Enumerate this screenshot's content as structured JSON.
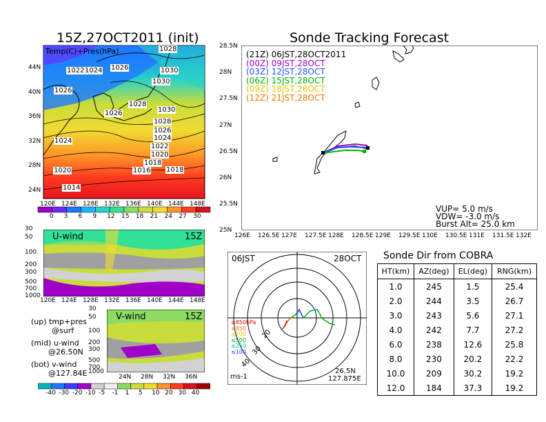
{
  "top_left": {
    "title": "15Z,27OCT2011 (init)",
    "label": "Temp(C)+Pres(hPa)",
    "lat_ticks": [
      "44N",
      "40N",
      "36N",
      "32N",
      "28N",
      "24N"
    ],
    "lon_ticks": [
      "120E",
      "124E",
      "128E",
      "132E",
      "136E",
      "140E",
      "144E",
      "148E"
    ],
    "isobars": [
      "1028",
      "1022",
      "1024",
      "1026",
      "1030",
      "1026",
      "1030",
      "1028",
      "1026",
      "1030",
      "1028",
      "1026",
      "1024",
      "1024",
      "1022",
      "1020",
      "1018",
      "1020",
      "1016",
      "1018",
      "1014",
      "1018"
    ],
    "colorbar": [
      "0",
      "3",
      "6",
      "9",
      "12",
      "15",
      "18",
      "21",
      "24",
      "27",
      "30"
    ],
    "colors": [
      "#a000c8",
      "#6e28ff",
      "#1e78ff",
      "#1eb4ff",
      "#28d2c8",
      "#32e196",
      "#8cdc64",
      "#c8dc3c",
      "#f0dc32",
      "#ff9628",
      "#ff3c1e",
      "#d2141e"
    ]
  },
  "uwind": {
    "title": "U-wind",
    "time": "15Z",
    "levels": [
      "30",
      "50",
      "100",
      "200",
      "300",
      "500",
      "700",
      "1000"
    ],
    "lon_ticks": [
      "120E",
      "124E",
      "128E",
      "132E",
      "136E",
      "140E",
      "144E",
      "148E"
    ]
  },
  "vwind": {
    "title": "V-wind",
    "time": "15Z",
    "levels": [
      "30",
      "50",
      "100",
      "200",
      "300",
      "500",
      "700",
      "1000"
    ],
    "lat_ticks": [
      "24N",
      "28N",
      "32N",
      "36N"
    ],
    "colorbar": [
      "-40",
      "-30",
      "-20",
      "-10",
      "-5",
      "-1",
      "1",
      "5",
      "10",
      "20",
      "30",
      "40"
    ]
  },
  "legend_text": {
    "up": "(up) tmp+pres",
    "up2": "@surf",
    "mid": "(mid) u-wind",
    "mid2": "@26.50N",
    "bot": "(bot) v-wind",
    "bot2": "@127.84E"
  },
  "tracking": {
    "title": "Sonde Tracking Forecast",
    "lat_ticks": [
      "28.5N",
      "28N",
      "27.5N",
      "27N",
      "26.5N",
      "26N",
      "25.5N",
      "25N"
    ],
    "lon_ticks": [
      "126E",
      "126.5E",
      "127E",
      "127.5E",
      "128E",
      "128.5E",
      "129E",
      "129.5E",
      "130E",
      "130.5E",
      "131E",
      "131.5E",
      "132E"
    ],
    "entries": [
      {
        "text": "(21Z)  06JST,28OCT2011",
        "color": "#000000"
      },
      {
        "text": "(00Z)  09JST,28OCT",
        "color": "#a000c8"
      },
      {
        "text": "(03Z)  12JST,28OCT",
        "color": "#1e50ff"
      },
      {
        "text": "(06Z)  15JST,28OCT",
        "color": "#00b400"
      },
      {
        "text": "(09Z)  18JST,28OCT",
        "color": "#e6c800"
      },
      {
        "text": "(12Z)  21JST,28OCT",
        "color": "#f07800"
      }
    ],
    "vup": "VUP=  5.0  m/s",
    "vdw": "VDW= -3.0  m/s",
    "burst": "Burst Alt= 25.0  km"
  },
  "polar": {
    "time": "06JST",
    "date": "28OCT",
    "rings": [
      "20",
      "30",
      "40"
    ],
    "pressures": [
      {
        "text": "≥850hPa",
        "color": "#e60000"
      },
      {
        "text": "≤850",
        "color": "#f07800"
      },
      {
        "text": "≤700",
        "color": "#e6c800"
      },
      {
        "text": "≤500",
        "color": "#00b400"
      },
      {
        "text": "≤250",
        "color": "#00b4b4"
      },
      {
        "text": "≤100",
        "color": "#1e50ff"
      }
    ],
    "unit": "ms-1",
    "lat": "26.5N",
    "lon": "127.875E"
  },
  "sonde_dir": {
    "title": "Sonde Dir from COBRA",
    "headers": [
      "HT(km)",
      "AZ(deg)",
      "EL(deg)",
      "RNG(km)"
    ],
    "rows": [
      [
        "1.0",
        "245",
        "1.5",
        "25.4"
      ],
      [
        "2.0",
        "244",
        "3.5",
        "26.7"
      ],
      [
        "3.0",
        "243",
        "5.6",
        "27.1"
      ],
      [
        "4.0",
        "242",
        "7.7",
        "27.2"
      ],
      [
        "6.0",
        "238",
        "12.6",
        "25.8"
      ],
      [
        "8.0",
        "230",
        "20.2",
        "22.2"
      ],
      [
        "10.0",
        "209",
        "30.2",
        "19.2"
      ],
      [
        "12.0",
        "184",
        "37.3",
        "19.2"
      ]
    ]
  }
}
